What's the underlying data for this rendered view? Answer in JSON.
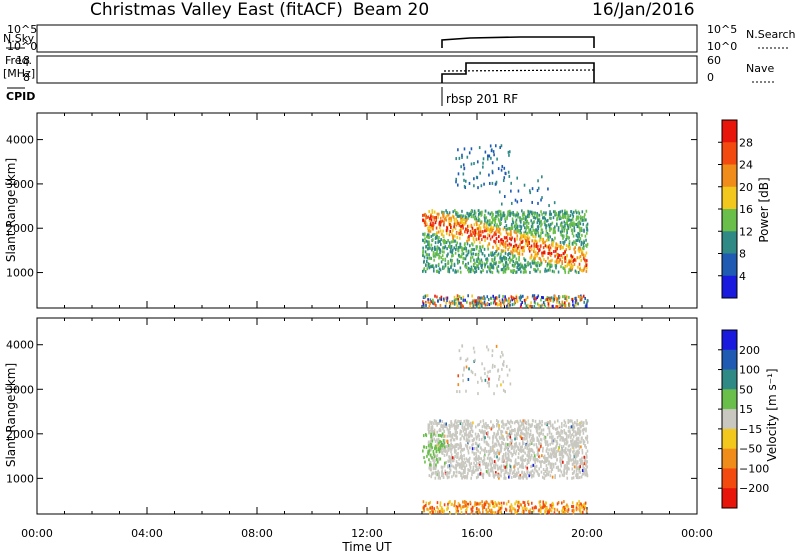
{
  "header": {
    "station": "Christmas Valley East (fitACF)",
    "beam": "Beam 20",
    "date": "16/Jan/2016"
  },
  "panels": {
    "nsky": {
      "left_label": "N.Sky",
      "right_label": "N.Search",
      "left_ticks": [
        "10^5",
        "10^0"
      ],
      "right_ticks": [
        "10^5",
        "10^0"
      ]
    },
    "freq": {
      "left_label_1": "Freq.",
      "left_label_2": "[MHz]",
      "right_label": "Nave",
      "left_ticks": [
        "18",
        "8"
      ],
      "right_ticks": [
        "60",
        "0"
      ]
    },
    "cpid": {
      "label": "CPID",
      "program": "rbsp 201 RF"
    }
  },
  "colors": {
    "power": [
      "#1a1adf",
      "#1f5bb3",
      "#2f8a86",
      "#6abf4a",
      "#f2c81e",
      "#f08c1a",
      "#f24a0f",
      "#e8150a"
    ],
    "velocity": [
      "#e8150a",
      "#f24a0f",
      "#f08c1a",
      "#f2c81e",
      "#c8c8c0",
      "#6abf4a",
      "#2f8a86",
      "#1f5bb3",
      "#1a1adf"
    ]
  },
  "chart_data": [
    {
      "type": "heatmap",
      "name": "power",
      "ylabel": "Slant Range [km]",
      "yticks": [
        1000,
        2000,
        3000,
        4000
      ],
      "ylim": [
        200,
        4600
      ],
      "xlim": [
        0,
        24
      ],
      "colorbar_label": "Power [dB]",
      "colorbar_ticks": [
        4,
        8,
        12,
        16,
        20,
        24,
        28
      ],
      "colorbar_range": [
        0,
        32
      ]
    },
    {
      "type": "heatmap",
      "name": "velocity",
      "ylabel": "Slant Range [km]",
      "yticks": [
        1000,
        2000,
        3000,
        4000
      ],
      "ylim": [
        200,
        4600
      ],
      "xlim": [
        0,
        24
      ],
      "xlabel": "Time UT",
      "xticks": [
        "00:00",
        "04:00",
        "08:00",
        "12:00",
        "16:00",
        "20:00",
        "00:00"
      ],
      "colorbar_label": "Velocity [m s⁻¹]",
      "colorbar_ticks": [
        "200",
        "100",
        "50",
        "15",
        "−15",
        "−50",
        "−100",
        "−200"
      ]
    },
    {
      "type": "line",
      "name": "operation",
      "x_start_hour": 14,
      "x_end_hour": 20
    }
  ]
}
